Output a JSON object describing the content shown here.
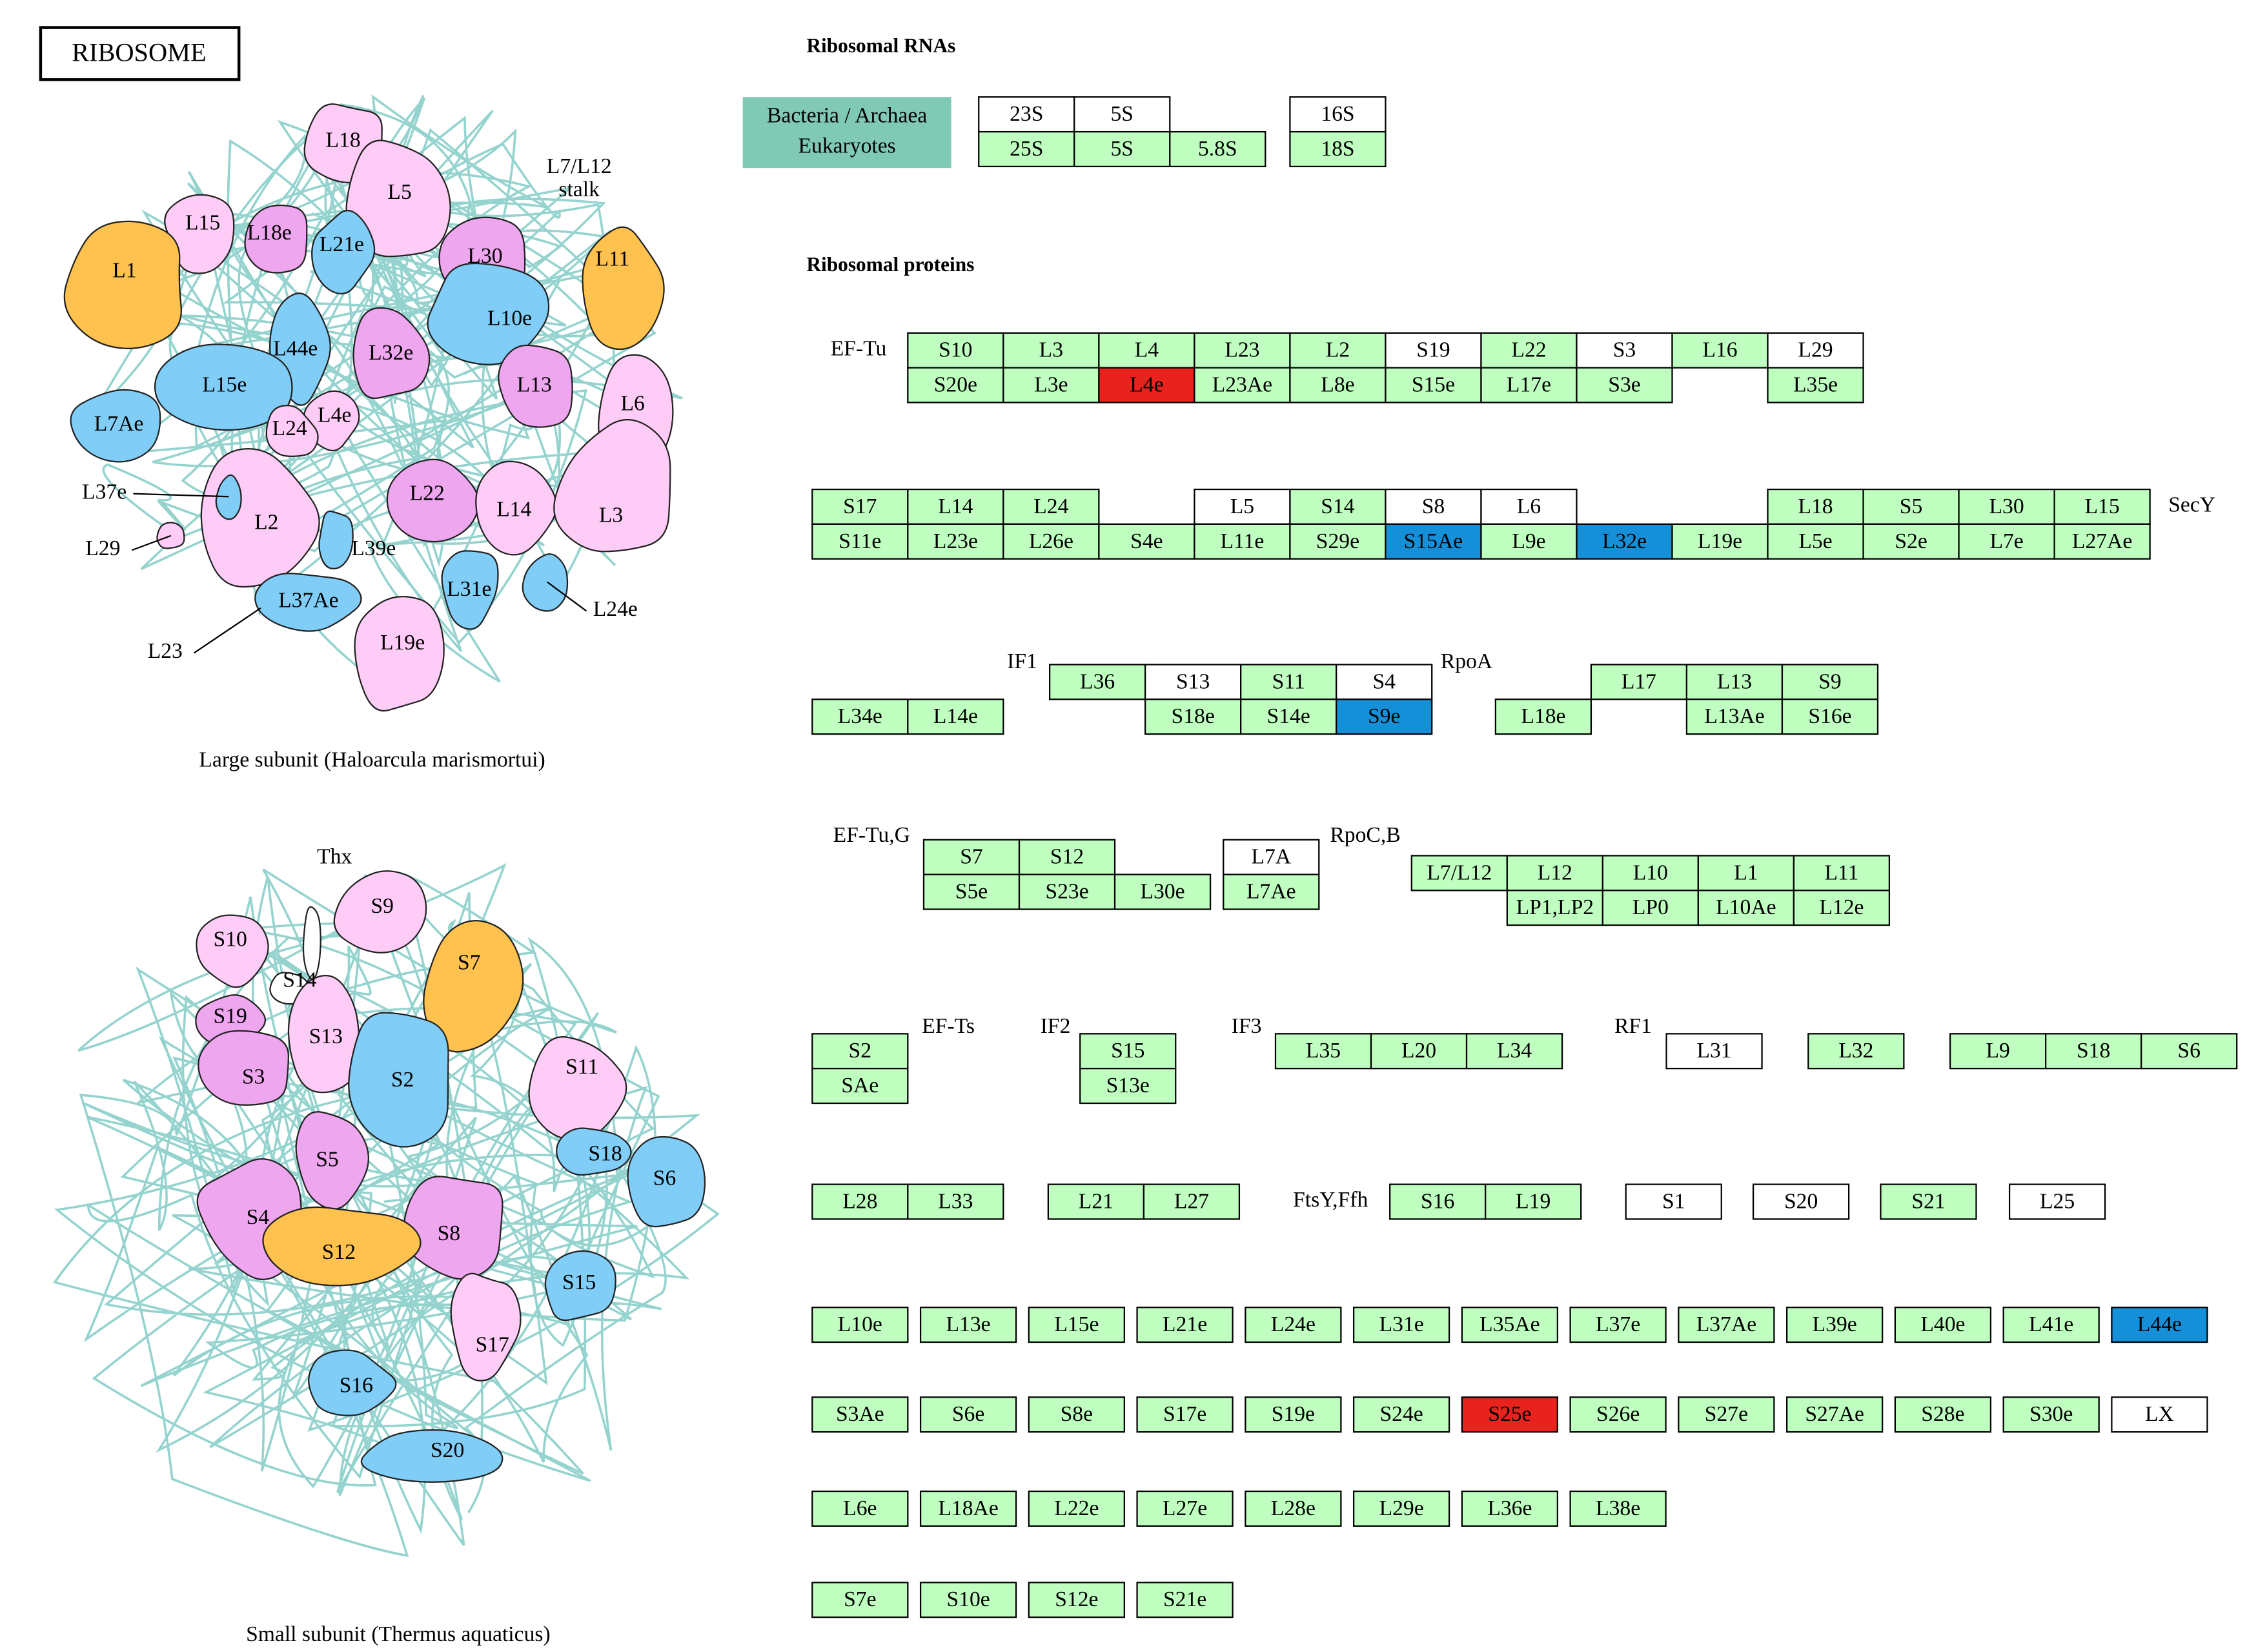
{
  "title": "RIBOSOME",
  "box_color": "#bfffbf",
  "large_subunit": {
    "caption": "Large subunit (Haloarcula marismortui)",
    "stalk_label": [
      "L7/L12",
      "stalk"
    ],
    "proteins": [
      "L18",
      "L5",
      "L15",
      "L18e",
      "L21e",
      "L30",
      "L11",
      "L1",
      "L10e",
      "L44e",
      "L32e",
      "L15e",
      "L13",
      "L6",
      "L7Ae",
      "L4e",
      "L24",
      "L22",
      "L14",
      "L3",
      "L2",
      "L39e",
      "L31e",
      "L37Ae",
      "L19e",
      "L37e",
      "L29",
      "L23",
      "L24e"
    ]
  },
  "small_subunit": {
    "caption": "Small subunit (Thermus aquaticus)",
    "proteins": [
      "Thx",
      "S9",
      "S10",
      "S7",
      "S14",
      "S19",
      "S13",
      "S2",
      "S3",
      "S11",
      "S18",
      "S6",
      "S5",
      "S4",
      "S8",
      "S12",
      "S15",
      "S17",
      "S16",
      "S20"
    ]
  },
  "rna": {
    "heading": "Ribosomal RNAs",
    "legend": [
      "Bacteria / Archaea",
      "Eukaryotes"
    ],
    "legend_color": "#80c9b4",
    "blocks": [
      [
        {
          "label": "23S",
          "color": "#ffffff"
        },
        {
          "label": "5S",
          "color": "#ffffff"
        }
      ],
      [
        "25S",
        "5S",
        "5.8S"
      ],
      [
        {
          "label": "16S",
          "color": "#ffffff"
        }
      ],
      [
        "18S"
      ]
    ]
  },
  "proteins": {
    "heading": "Ribosomal proteins",
    "factors": [
      "EF-Tu",
      "SecY",
      "IF1",
      "RpoA",
      "EF-Tu,G",
      "RpoC,B",
      "EF-Ts",
      "IF2",
      "IF3",
      "RF1",
      "FtsY,Ffh"
    ],
    "blocks": [
      [
        "S10",
        "L3",
        "L4",
        "L23",
        "L2",
        {
          "label": "S19",
          "color": "#ffffff"
        },
        "L22",
        {
          "label": "S3",
          "color": "#ffffff"
        },
        "L16",
        {
          "label": "L29",
          "color": "#ffffff"
        }
      ],
      [
        "S20e",
        "L3e",
        {
          "label": "L4e",
          "color": "#e8231d"
        },
        "L23Ae",
        "L8e",
        "S15e",
        "L17e",
        "S3e"
      ],
      [
        "L35e"
      ],
      [
        "S17",
        "L14",
        "L24"
      ],
      [
        {
          "label": "L5",
          "color": "#ffffff"
        },
        "S14",
        {
          "label": "S8",
          "color": "#ffffff"
        },
        {
          "label": "L6",
          "color": "#ffffff"
        }
      ],
      [
        "L18",
        "S5",
        "L30",
        "L15"
      ],
      [
        "S11e",
        "L23e",
        "L26e",
        "S4e",
        "L11e",
        "S29e",
        {
          "label": "S15Ae",
          "color": "#1590d8"
        },
        "L9e",
        {
          "label": "L32e",
          "color": "#1590d8"
        },
        "L19e",
        "L5e",
        "S2e",
        "L7e",
        "L27Ae"
      ],
      [
        "L36",
        {
          "label": "S13",
          "color": "#ffffff"
        },
        "S11",
        {
          "label": "S4",
          "color": "#ffffff"
        }
      ],
      [
        "L34e",
        "L14e"
      ],
      [
        "S18e",
        "S14e",
        {
          "label": "S9e",
          "color": "#1590d8"
        }
      ],
      [
        "L17",
        "L13",
        "S9"
      ],
      [
        "L18e"
      ],
      [
        "L13Ae",
        "S16e"
      ],
      [
        "S7",
        "S12"
      ],
      [
        "S5e",
        "S23e",
        "L30e"
      ],
      [
        {
          "label": "L7A",
          "color": "#ffffff"
        }
      ],
      [
        "L7Ae"
      ],
      [
        "L7/L12",
        "L12",
        "L10",
        "L1",
        "L11"
      ],
      [
        "LP1,LP2",
        "LP0",
        "L10Ae",
        "L12e"
      ],
      [
        "S2"
      ],
      [
        "SAe"
      ],
      [
        "S15"
      ],
      [
        "S13e"
      ],
      [
        "L35",
        "L20",
        "L34"
      ],
      [
        {
          "label": "L31",
          "color": "#ffffff"
        }
      ],
      [
        "L32"
      ],
      [
        "L9",
        "S18",
        "S6"
      ],
      [
        "L28",
        "L33"
      ],
      [
        "L21",
        "L27"
      ],
      [
        "S16",
        "L19"
      ],
      [
        {
          "label": "S1",
          "color": "#ffffff"
        }
      ],
      [
        {
          "label": "S20",
          "color": "#ffffff"
        }
      ],
      [
        "S21"
      ],
      [
        {
          "label": "L25",
          "color": "#ffffff"
        }
      ],
      [
        "L10e",
        "L13e",
        "L15e",
        "L21e",
        "L24e",
        "L31e",
        "L35Ae",
        "L37e",
        "L37Ae",
        "L39e",
        "L40e",
        "L41e",
        {
          "label": "L44e",
          "color": "#1590d8"
        }
      ],
      [
        "S3Ae",
        "S6e",
        "S8e",
        "S17e",
        "S19e",
        "S24e",
        {
          "label": "S25e",
          "color": "#e8231d"
        },
        "S26e",
        "S27e",
        "S27Ae",
        "S28e",
        "S30e",
        {
          "label": "LX",
          "color": "#ffffff"
        }
      ],
      [
        "L6e",
        "L18Ae",
        "L22e",
        "L27e",
        "L28e",
        "L29e",
        "L36e",
        "L38e"
      ],
      [
        "S7e",
        "S10e",
        "S12e",
        "S21e"
      ]
    ]
  }
}
